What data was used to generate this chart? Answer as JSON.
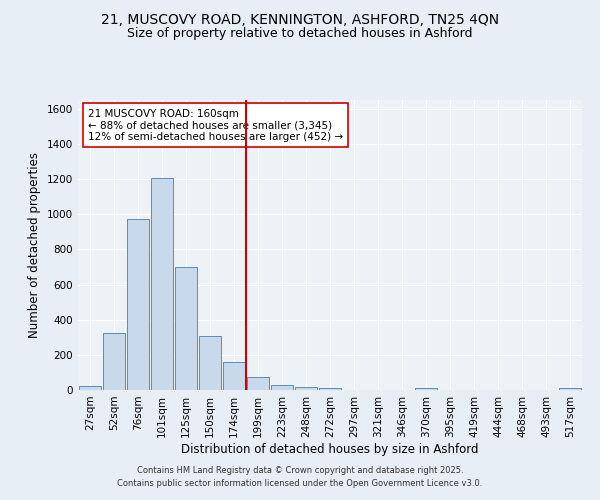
{
  "title1": "21, MUSCOVY ROAD, KENNINGTON, ASHFORD, TN25 4QN",
  "title2": "Size of property relative to detached houses in Ashford",
  "xlabel": "Distribution of detached houses by size in Ashford",
  "ylabel": "Number of detached properties",
  "categories": [
    "27sqm",
    "52sqm",
    "76sqm",
    "101sqm",
    "125sqm",
    "150sqm",
    "174sqm",
    "199sqm",
    "223sqm",
    "248sqm",
    "272sqm",
    "297sqm",
    "321sqm",
    "346sqm",
    "370sqm",
    "395sqm",
    "419sqm",
    "444sqm",
    "468sqm",
    "493sqm",
    "517sqm"
  ],
  "values": [
    25,
    325,
    975,
    1205,
    700,
    310,
    160,
    75,
    30,
    15,
    10,
    0,
    0,
    0,
    10,
    0,
    0,
    0,
    0,
    0,
    10
  ],
  "bar_color": "#c8d9eb",
  "bar_edge_color": "#5b8db8",
  "vline_x": 6.5,
  "vline_color": "#cc0000",
  "annotation_text": "21 MUSCOVY ROAD: 160sqm\n← 88% of detached houses are smaller (3,345)\n12% of semi-detached houses are larger (452) →",
  "annotation_box_color": "#ffffff",
  "annotation_box_edge": "#cc0000",
  "footer1": "Contains HM Land Registry data © Crown copyright and database right 2025.",
  "footer2": "Contains public sector information licensed under the Open Government Licence v3.0.",
  "ylim": [
    0,
    1650
  ],
  "bg_color": "#e8eef5",
  "plot_bg": "#edf2f7",
  "grid_color": "#ffffff",
  "title_fontsize": 10,
  "subtitle_fontsize": 9,
  "axis_label_fontsize": 8.5,
  "tick_fontsize": 7.5,
  "annotation_fontsize": 7.5,
  "footer_fontsize": 6
}
